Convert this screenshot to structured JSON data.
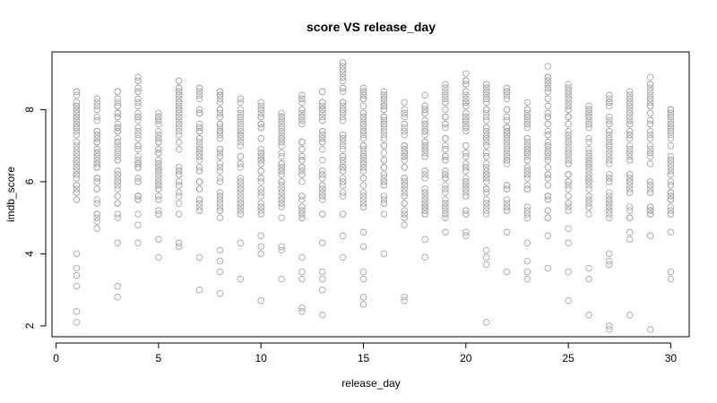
{
  "chart_data": {
    "type": "scatter",
    "title": "score VS release_day",
    "xlabel": "release_day",
    "ylabel": "imdb_score",
    "xlim": [
      -0.2,
      30.9
    ],
    "ylim": [
      1.7,
      9.6
    ],
    "xticks": [
      0,
      5,
      10,
      15,
      20,
      25,
      30
    ],
    "yticks": [
      2,
      4,
      6,
      8
    ],
    "grid": false,
    "legend": "none",
    "marker": "open-circle",
    "point_color": "#a6a6a6",
    "per_day": [
      {
        "x": 1,
        "min": 2.1,
        "max": 8.5,
        "n": 55,
        "out": [
          2.1,
          2.4,
          3.1,
          3.4,
          3.6,
          4.0
        ]
      },
      {
        "x": 2,
        "min": 4.7,
        "max": 8.3,
        "n": 45,
        "out": [
          4.7,
          4.9
        ]
      },
      {
        "x": 3,
        "min": 2.8,
        "max": 8.5,
        "n": 48,
        "out": [
          2.8,
          3.1,
          4.3
        ]
      },
      {
        "x": 4,
        "min": 4.3,
        "max": 8.9,
        "n": 45,
        "out": [
          4.3,
          4.8
        ]
      },
      {
        "x": 5,
        "min": 3.9,
        "max": 7.9,
        "n": 48,
        "out": [
          3.9,
          4.4
        ]
      },
      {
        "x": 6,
        "min": 4.2,
        "max": 8.8,
        "n": 45,
        "out": [
          4.2,
          4.3
        ]
      },
      {
        "x": 7,
        "min": 3.0,
        "max": 8.6,
        "n": 45,
        "out": [
          3.0,
          3.9
        ]
      },
      {
        "x": 8,
        "min": 2.9,
        "max": 8.5,
        "n": 45,
        "out": [
          2.9,
          3.5,
          3.8,
          4.1
        ]
      },
      {
        "x": 9,
        "min": 3.3,
        "max": 8.3,
        "n": 45,
        "out": [
          3.3,
          4.3
        ]
      },
      {
        "x": 10,
        "min": 2.7,
        "max": 8.2,
        "n": 48,
        "out": [
          2.7,
          4.0,
          4.2,
          4.5
        ]
      },
      {
        "x": 11,
        "min": 3.3,
        "max": 7.9,
        "n": 48,
        "out": [
          3.3,
          4.1,
          4.2
        ]
      },
      {
        "x": 12,
        "min": 2.4,
        "max": 8.4,
        "n": 50,
        "out": [
          2.4,
          2.5,
          3.3,
          3.5,
          3.9
        ]
      },
      {
        "x": 13,
        "min": 2.3,
        "max": 8.5,
        "n": 48,
        "out": [
          2.3,
          3.0,
          3.3,
          3.5,
          4.3
        ]
      },
      {
        "x": 14,
        "min": 3.9,
        "max": 9.3,
        "n": 52,
        "out": [
          3.9,
          4.5
        ]
      },
      {
        "x": 15,
        "min": 2.6,
        "max": 8.6,
        "n": 52,
        "out": [
          2.6,
          2.8,
          3.3,
          3.5,
          4.2,
          4.6
        ]
      },
      {
        "x": 16,
        "min": 4.0,
        "max": 8.5,
        "n": 45,
        "out": [
          4.0
        ]
      },
      {
        "x": 17,
        "min": 2.7,
        "max": 8.2,
        "n": 45,
        "out": [
          2.7,
          2.8,
          4.8,
          5.0
        ]
      },
      {
        "x": 18,
        "min": 3.9,
        "max": 8.4,
        "n": 48,
        "out": [
          3.9,
          4.4
        ]
      },
      {
        "x": 19,
        "min": 4.6,
        "max": 8.7,
        "n": 45,
        "out": [
          4.6
        ]
      },
      {
        "x": 20,
        "min": 4.5,
        "max": 9.0,
        "n": 52,
        "out": [
          4.5,
          4.6
        ]
      },
      {
        "x": 21,
        "min": 2.1,
        "max": 8.7,
        "n": 55,
        "out": [
          2.1,
          3.7,
          3.9,
          4.1
        ]
      },
      {
        "x": 22,
        "min": 3.5,
        "max": 8.6,
        "n": 48,
        "out": [
          3.5,
          4.6
        ]
      },
      {
        "x": 23,
        "min": 3.3,
        "max": 8.2,
        "n": 45,
        "out": [
          3.3,
          3.5,
          3.8,
          4.3
        ]
      },
      {
        "x": 24,
        "min": 3.6,
        "max": 9.2,
        "n": 48,
        "out": [
          3.6,
          4.5
        ]
      },
      {
        "x": 25,
        "min": 2.7,
        "max": 8.7,
        "n": 55,
        "out": [
          2.7,
          3.5,
          4.3,
          4.7
        ]
      },
      {
        "x": 26,
        "min": 2.3,
        "max": 8.1,
        "n": 45,
        "out": [
          2.3,
          3.3,
          3.6
        ]
      },
      {
        "x": 27,
        "min": 1.9,
        "max": 8.4,
        "n": 48,
        "out": [
          1.9,
          2.0,
          3.7,
          3.8,
          4.0
        ]
      },
      {
        "x": 28,
        "min": 2.3,
        "max": 8.5,
        "n": 45,
        "out": [
          2.3,
          4.4,
          4.6
        ]
      },
      {
        "x": 29,
        "min": 1.9,
        "max": 8.9,
        "n": 45,
        "out": [
          1.9,
          4.5
        ]
      },
      {
        "x": 30,
        "min": 3.3,
        "max": 8.0,
        "n": 45,
        "out": [
          3.3,
          3.5,
          4.6
        ]
      }
    ]
  }
}
